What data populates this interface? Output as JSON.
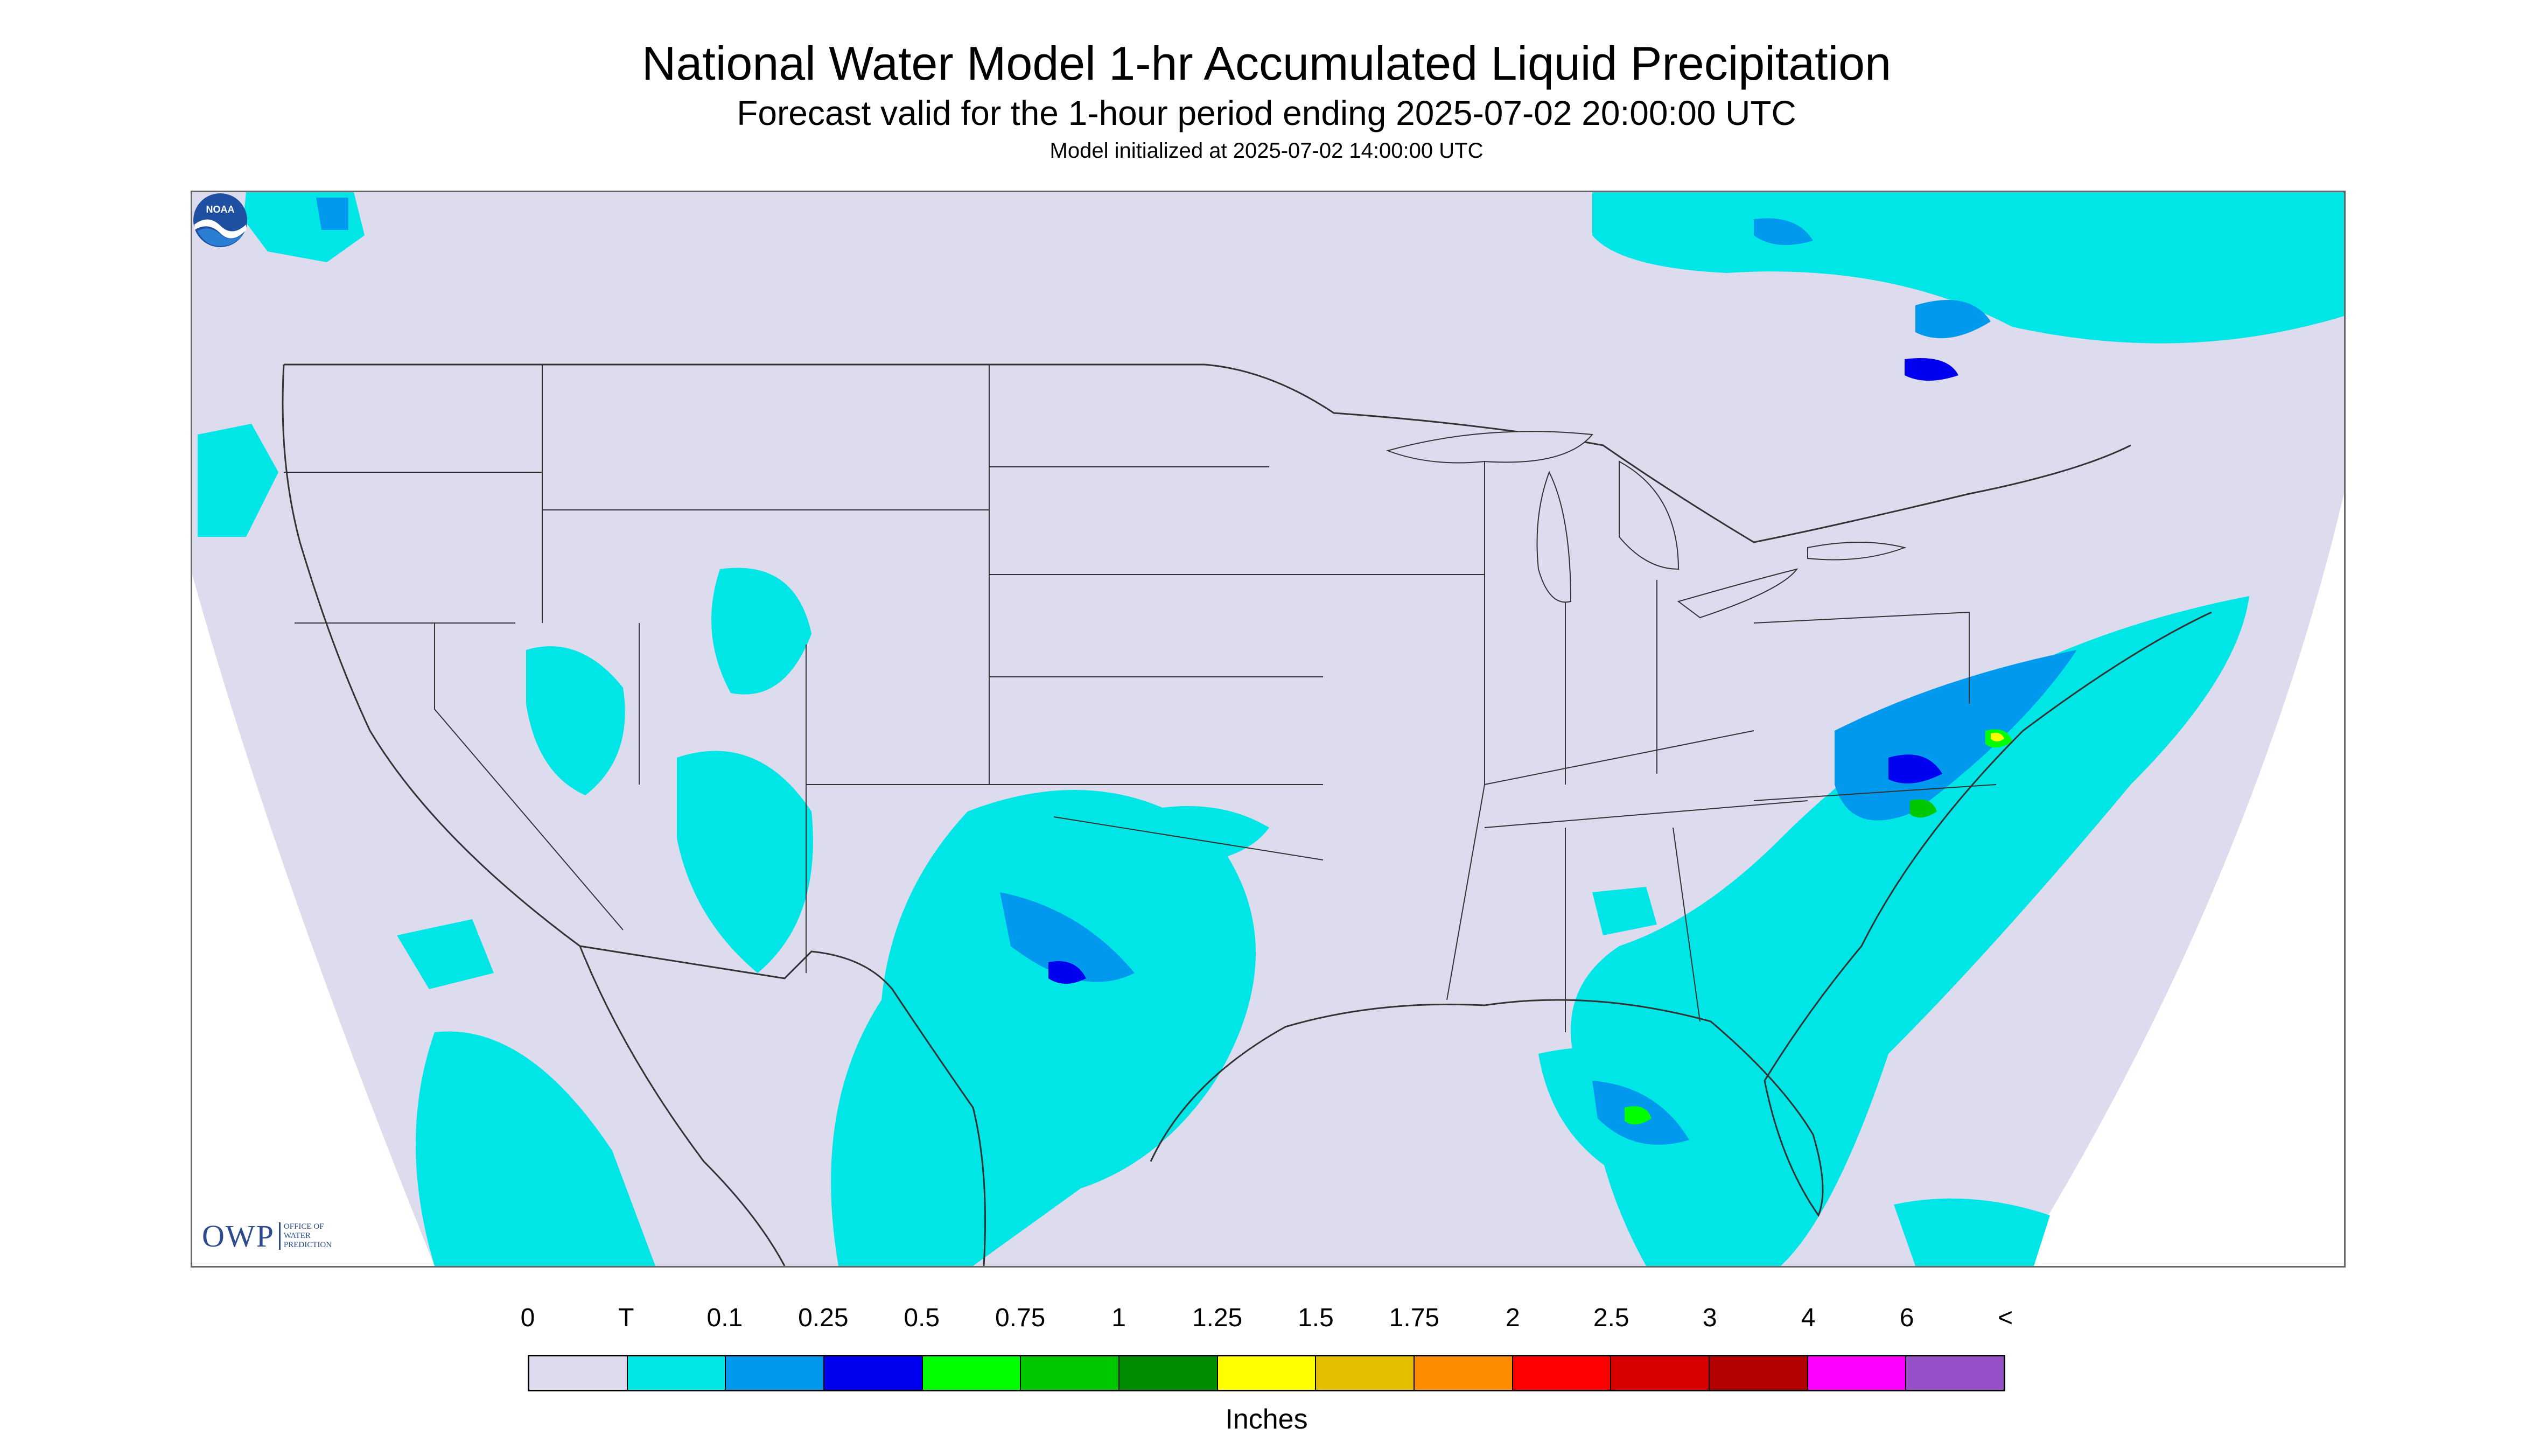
{
  "header": {
    "title": "National Water Model 1-hr Accumulated Liquid Precipitation",
    "subtitle": "Forecast valid for the 1-hour period ending 2025-07-02 20:00:00 UTC",
    "init_note": "Model initialized at 2025-07-02 14:00:00 UTC"
  },
  "logos": {
    "owp_text": "OWP",
    "owp_sub": "OFFICE OF WATER PREDICTION",
    "noaa_text": "NOAA"
  },
  "legend": {
    "tick_labels": [
      "0",
      "T",
      "0.1",
      "0.25",
      "0.5",
      "0.75",
      "1",
      "1.25",
      "1.5",
      "1.75",
      "2",
      "2.5",
      "3",
      "4",
      "6",
      "<"
    ],
    "colors": [
      "#dcdcee",
      "#00e5e5",
      "#0099ee",
      "#0000f0",
      "#00ff00",
      "#00c800",
      "#008c00",
      "#ffff00",
      "#e6be00",
      "#ff8c00",
      "#ff0000",
      "#d80000",
      "#b40000",
      "#ff00ff",
      "#9650c8"
    ],
    "units": "Inches"
  },
  "map": {
    "background": "#dcdcee",
    "outside": "#ffffff",
    "line": "#333333"
  }
}
